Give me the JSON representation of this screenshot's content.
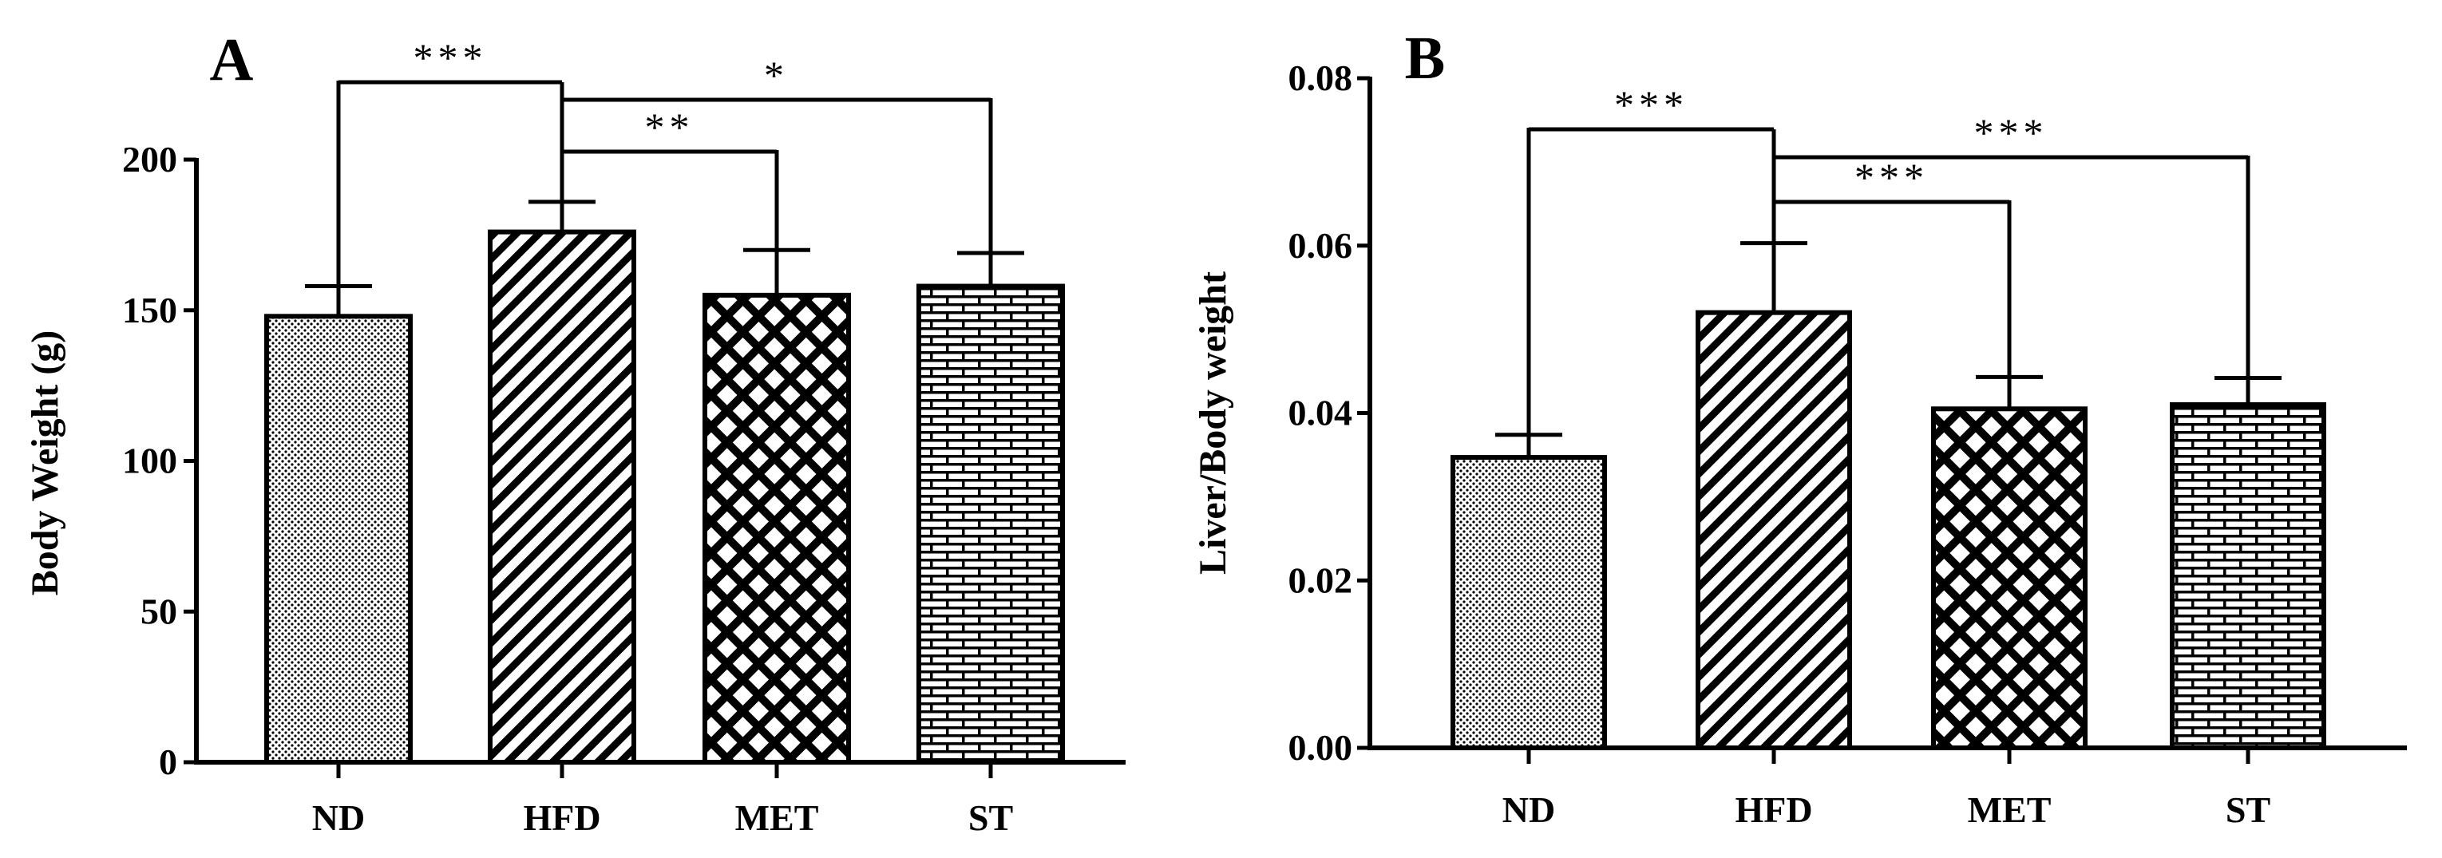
{
  "chart_data": [
    {
      "panel": "A",
      "type": "bar",
      "ylabel": "Body Weight (g)",
      "ylim": [
        0,
        200
      ],
      "yticks": [
        0,
        50,
        100,
        150,
        200
      ],
      "ytick_labels": [
        "0",
        "50",
        "100",
        "150",
        "200"
      ],
      "categories": [
        "ND",
        "HFD",
        "MET",
        "ST"
      ],
      "values": [
        148,
        176,
        155,
        158
      ],
      "errors": [
        10,
        10,
        15,
        11
      ],
      "patterns": [
        "dots",
        "diagonal",
        "diamonds",
        "bricks"
      ],
      "significance": [
        {
          "from": "HFD",
          "to": "ND",
          "label": "***"
        },
        {
          "from": "HFD",
          "to": "MET",
          "label": "**"
        },
        {
          "from": "HFD",
          "to": "ST",
          "label": "*"
        }
      ]
    },
    {
      "panel": "B",
      "type": "bar",
      "ylabel": "Liver/Body weight",
      "ylim": [
        0,
        0.08
      ],
      "yticks": [
        0,
        0.02,
        0.04,
        0.06,
        0.08
      ],
      "ytick_labels": [
        "0.00",
        "0.02",
        "0.04",
        "0.06",
        "0.08"
      ],
      "categories": [
        "ND",
        "HFD",
        "MET",
        "ST"
      ],
      "values": [
        0.0347,
        0.052,
        0.0405,
        0.041
      ],
      "errors": [
        0.0027,
        0.0083,
        0.0038,
        0.0032
      ],
      "patterns": [
        "dots",
        "diagonal",
        "diamonds",
        "bricks"
      ],
      "significance": [
        {
          "from": "HFD",
          "to": "ND",
          "label": "***"
        },
        {
          "from": "HFD",
          "to": "MET",
          "label": "***"
        },
        {
          "from": "HFD",
          "to": "ST",
          "label": "***"
        }
      ]
    }
  ]
}
